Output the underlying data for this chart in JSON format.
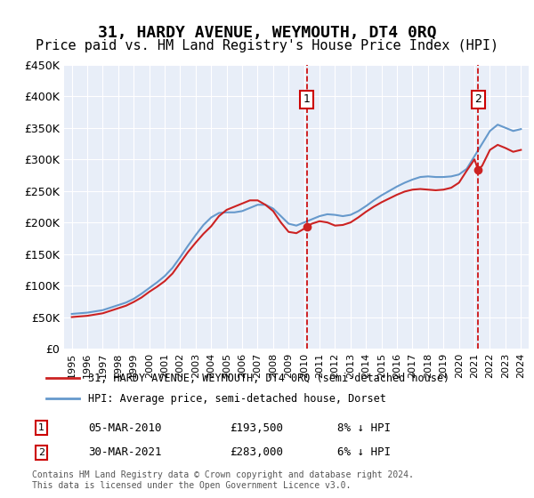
{
  "title": "31, HARDY AVENUE, WEYMOUTH, DT4 0RQ",
  "subtitle": "Price paid vs. HM Land Registry's House Price Index (HPI)",
  "title_fontsize": 13,
  "subtitle_fontsize": 11,
  "background_color": "#e8eef8",
  "plot_bg_color": "#e8eef8",
  "ylim": [
    0,
    450000
  ],
  "yticks": [
    0,
    50000,
    100000,
    150000,
    200000,
    250000,
    300000,
    350000,
    400000,
    450000
  ],
  "ytick_labels": [
    "£0",
    "£50K",
    "£100K",
    "£150K",
    "£200K",
    "£250K",
    "£300K",
    "£350K",
    "£400K",
    "£450K"
  ],
  "xlim_start": 1994.5,
  "xlim_end": 2024.5,
  "hpi_color": "#6699cc",
  "price_color": "#cc2222",
  "annotation_color": "#cc0000",
  "legend_label_price": "31, HARDY AVENUE, WEYMOUTH, DT4 0RQ (semi-detached house)",
  "legend_label_hpi": "HPI: Average price, semi-detached house, Dorset",
  "point1_x": 2010.17,
  "point1_y": 193500,
  "point1_label": "1",
  "point1_date": "05-MAR-2010",
  "point1_price": "£193,500",
  "point1_note": "8% ↓ HPI",
  "point2_x": 2021.24,
  "point2_y": 283000,
  "point2_label": "2",
  "point2_date": "30-MAR-2021",
  "point2_price": "£283,000",
  "point2_note": "6% ↓ HPI",
  "footnote": "Contains HM Land Registry data © Crown copyright and database right 2024.\nThis data is licensed under the Open Government Licence v3.0.",
  "hpi_x": [
    1995,
    1995.5,
    1996,
    1996.5,
    1997,
    1997.5,
    1998,
    1998.5,
    1999,
    1999.5,
    2000,
    2000.5,
    2001,
    2001.5,
    2002,
    2002.5,
    2003,
    2003.5,
    2004,
    2004.5,
    2005,
    2005.5,
    2006,
    2006.5,
    2007,
    2007.5,
    2008,
    2008.5,
    2009,
    2009.5,
    2010,
    2010.5,
    2011,
    2011.5,
    2012,
    2012.5,
    2013,
    2013.5,
    2014,
    2014.5,
    2015,
    2015.5,
    2016,
    2016.5,
    2017,
    2017.5,
    2018,
    2018.5,
    2019,
    2019.5,
    2020,
    2020.5,
    2021,
    2021.5,
    2022,
    2022.5,
    2023,
    2023.5,
    2024
  ],
  "hpi_y": [
    55000,
    56000,
    57000,
    59000,
    61000,
    65000,
    69000,
    73000,
    79000,
    87000,
    96000,
    105000,
    115000,
    128000,
    145000,
    163000,
    180000,
    196000,
    208000,
    215000,
    216000,
    216000,
    218000,
    223000,
    228000,
    228000,
    222000,
    210000,
    198000,
    195000,
    200000,
    205000,
    210000,
    213000,
    212000,
    210000,
    212000,
    218000,
    226000,
    235000,
    243000,
    250000,
    257000,
    263000,
    268000,
    272000,
    273000,
    272000,
    272000,
    273000,
    276000,
    285000,
    305000,
    325000,
    345000,
    355000,
    350000,
    345000,
    348000
  ],
  "price_x": [
    1995,
    1995.5,
    1996,
    1996.5,
    1997,
    1997.5,
    1998,
    1998.5,
    1999,
    1999.5,
    2000,
    2000.5,
    2001,
    2001.5,
    2002,
    2002.5,
    2003,
    2003.5,
    2004,
    2004.5,
    2005,
    2005.5,
    2006,
    2006.5,
    2007,
    2007.5,
    2008,
    2008.5,
    2009,
    2009.5,
    2010,
    2010.17,
    2010.5,
    2011,
    2011.5,
    2012,
    2012.5,
    2013,
    2013.5,
    2014,
    2014.5,
    2015,
    2015.5,
    2016,
    2016.5,
    2017,
    2017.5,
    2018,
    2018.5,
    2019,
    2019.5,
    2020,
    2020.5,
    2021,
    2021.24,
    2021.5,
    2022,
    2022.5,
    2023,
    2023.5,
    2024
  ],
  "price_y": [
    50000,
    51000,
    52000,
    54000,
    56000,
    60000,
    64000,
    68000,
    74000,
    81000,
    90000,
    98000,
    107000,
    119000,
    136000,
    153000,
    168000,
    182000,
    194000,
    210000,
    220000,
    225000,
    230000,
    235000,
    235000,
    228000,
    218000,
    200000,
    185000,
    183000,
    190000,
    193500,
    198000,
    202000,
    200000,
    195000,
    196000,
    200000,
    208000,
    217000,
    225000,
    232000,
    238000,
    244000,
    249000,
    252000,
    253000,
    252000,
    251000,
    252000,
    255000,
    263000,
    282000,
    300000,
    283000,
    290000,
    315000,
    323000,
    318000,
    312000,
    315000
  ]
}
